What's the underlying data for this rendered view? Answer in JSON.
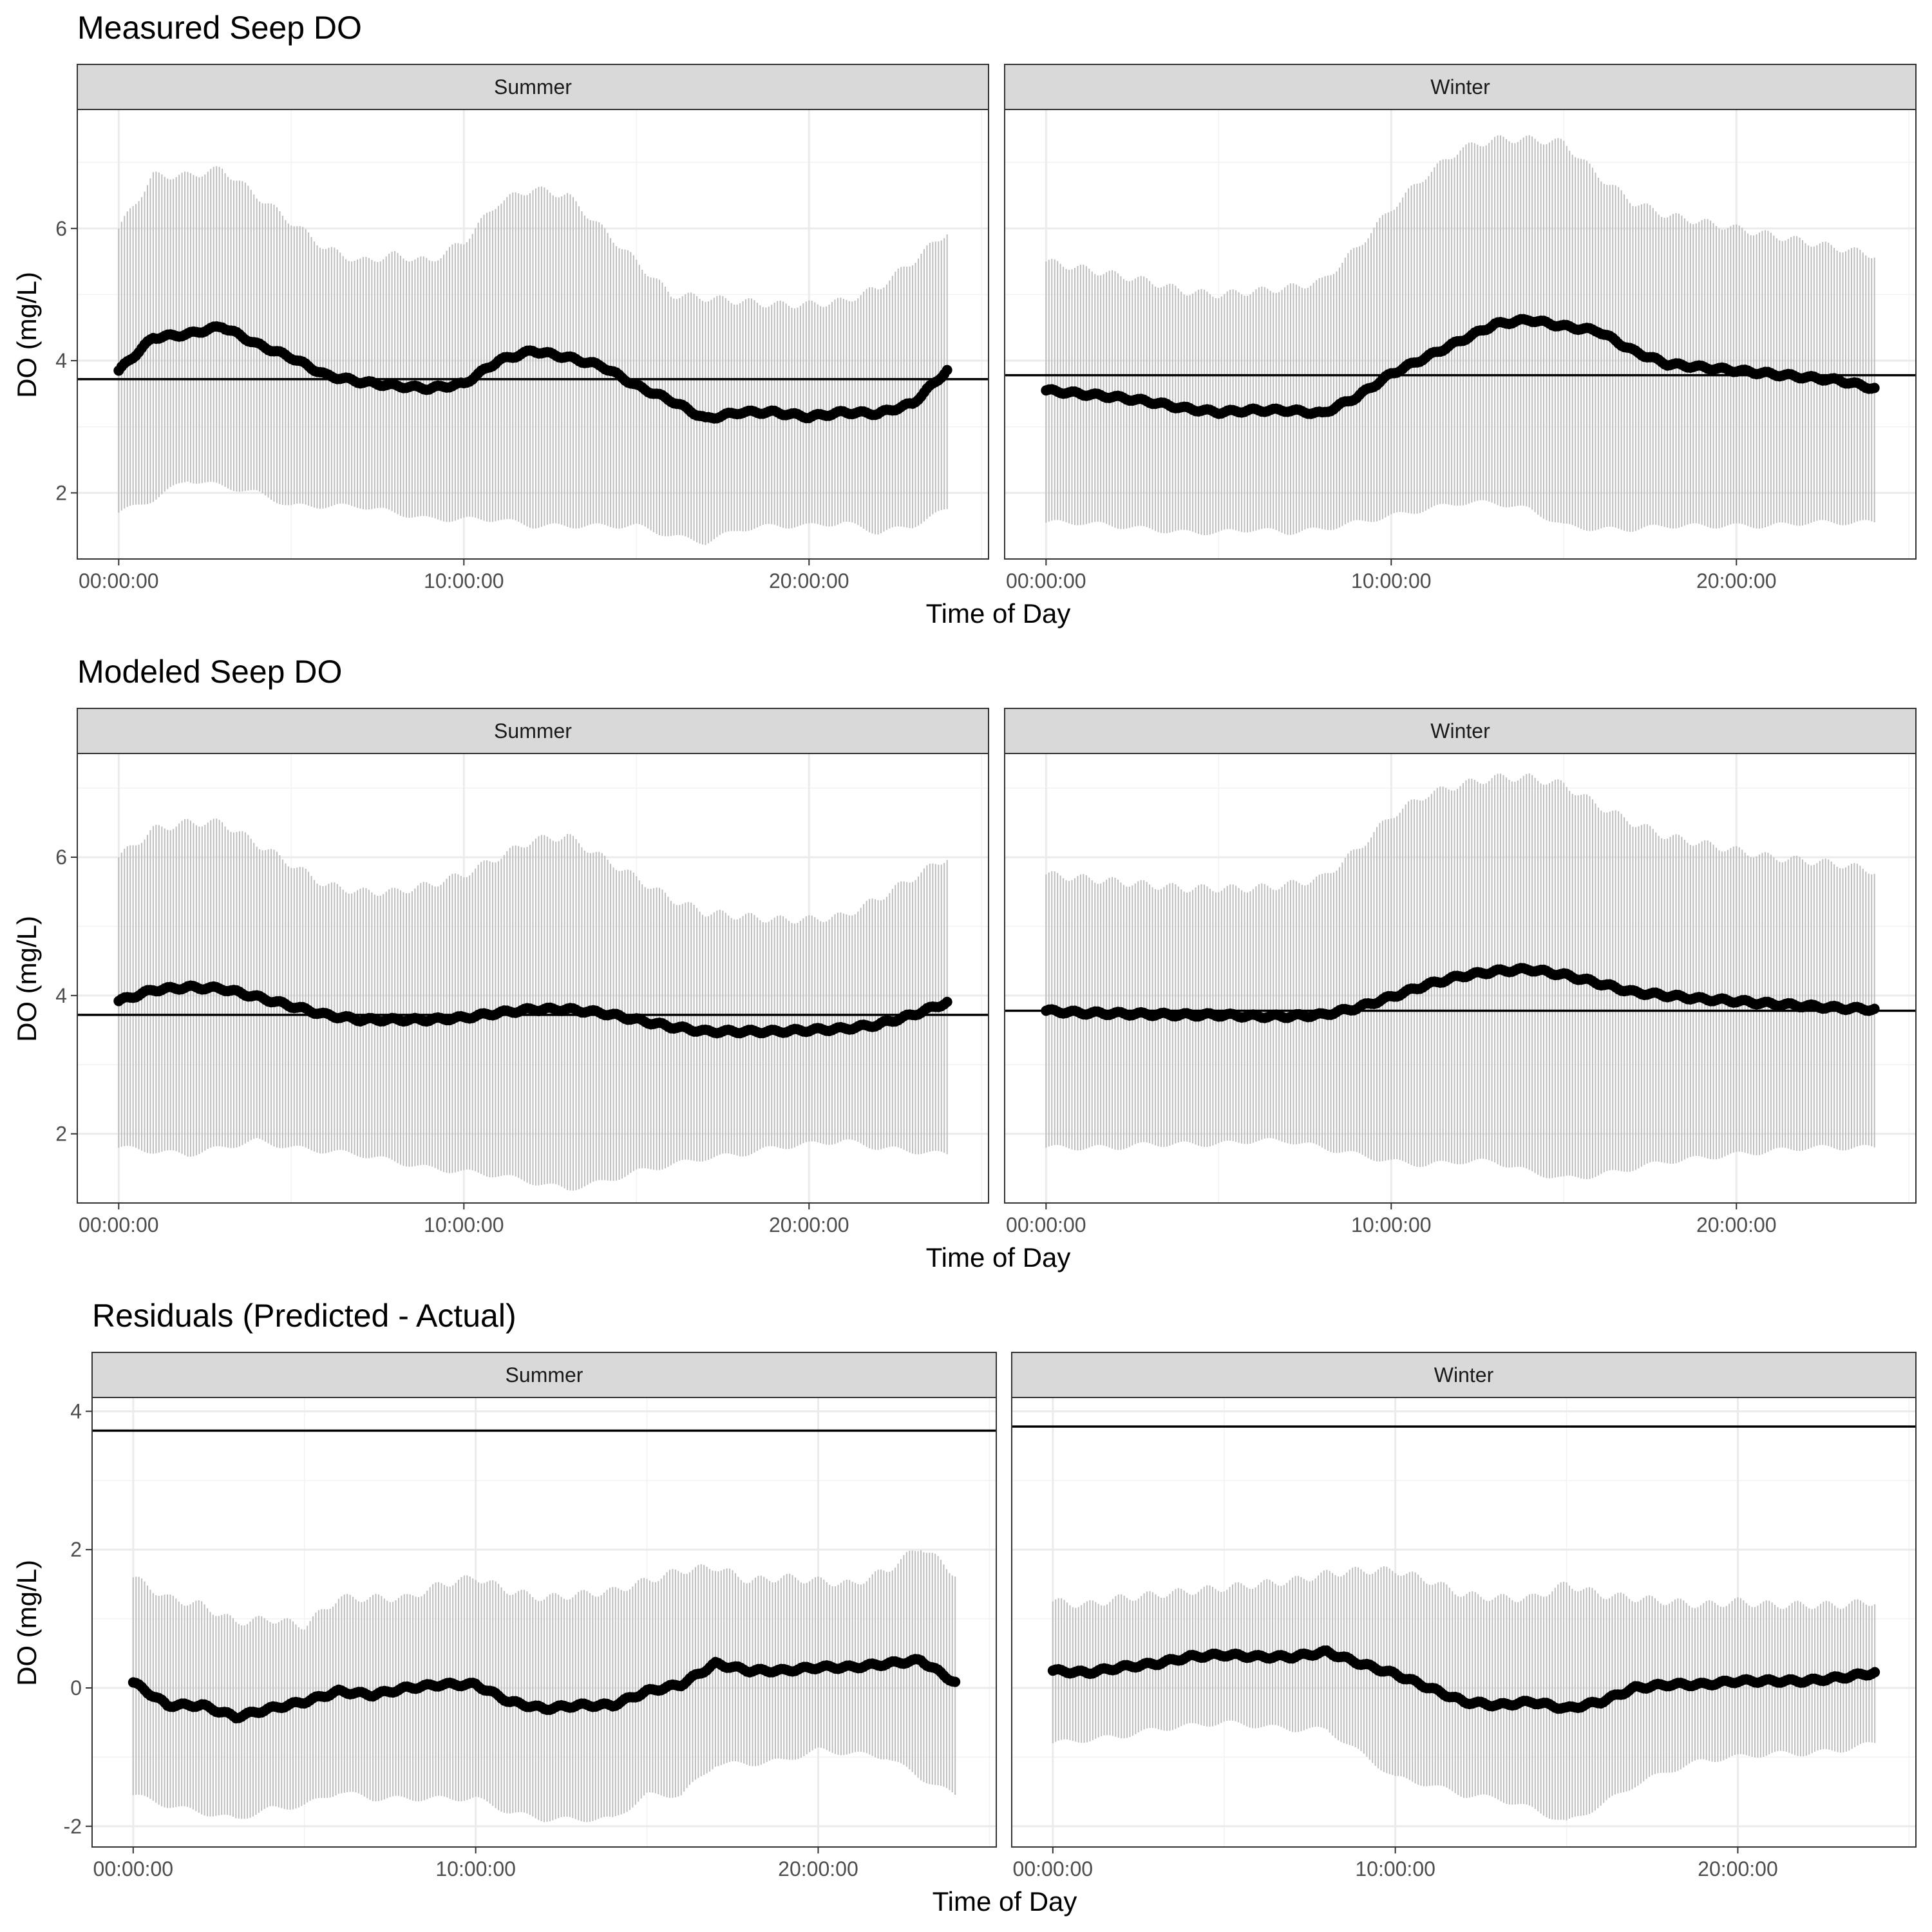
{
  "figure": {
    "panels": [
      {
        "title": "Measured Seep DO",
        "xlabel": "Time of Day",
        "ylabel": "DO (mg/L)"
      },
      {
        "title": "Modeled Seep DO",
        "xlabel": "Time of Day",
        "ylabel": "DO (mg/L)"
      },
      {
        "title": "Residuals (Predicted - Actual)",
        "xlabel": "Time of Day",
        "ylabel": "DO (mg/L)"
      }
    ]
  },
  "chart_data": [
    {
      "type": "scatter",
      "title": "Measured Seep DO",
      "xlabel": "Time of Day",
      "ylabel": "DO (mg/L)",
      "ylim": [
        1.0,
        7.8
      ],
      "yticks": [
        2,
        4,
        6
      ],
      "ytick_labels": [
        "2",
        "4",
        "6"
      ],
      "xlim_hours": [
        -1.2,
        25.2
      ],
      "xticks_hours": [
        0,
        10,
        20
      ],
      "xtick_labels": [
        "00:00:00",
        "10:00:00",
        "20:00:00"
      ],
      "grid": true,
      "facets": [
        {
          "label": "Summer",
          "hline": 3.72,
          "hours": [
            0,
            1,
            2,
            3,
            4,
            5,
            6,
            7,
            8,
            9,
            10,
            11,
            12,
            13,
            14,
            15,
            16,
            17,
            18,
            19,
            20,
            21,
            22,
            23,
            24
          ],
          "mean": [
            3.85,
            4.35,
            4.4,
            4.52,
            4.25,
            4.05,
            3.78,
            3.68,
            3.62,
            3.58,
            3.65,
            4.0,
            4.15,
            4.05,
            3.92,
            3.62,
            3.4,
            3.12,
            3.22,
            3.22,
            3.15,
            3.22,
            3.2,
            3.35,
            3.85
          ],
          "upper": [
            6.0,
            6.8,
            6.8,
            6.9,
            6.5,
            6.1,
            5.7,
            5.5,
            5.6,
            5.5,
            5.8,
            6.4,
            6.6,
            6.5,
            6.0,
            5.5,
            5.0,
            4.95,
            4.9,
            4.85,
            4.85,
            4.9,
            5.1,
            5.5,
            5.95
          ],
          "lower": [
            1.7,
            1.9,
            2.2,
            2.1,
            2.0,
            1.8,
            1.8,
            1.8,
            1.7,
            1.6,
            1.6,
            1.6,
            1.5,
            1.5,
            1.5,
            1.5,
            1.35,
            1.25,
            1.45,
            1.5,
            1.5,
            1.55,
            1.4,
            1.5,
            1.75
          ]
        },
        {
          "label": "Winter",
          "hline": 3.78,
          "hours": [
            0,
            1,
            2,
            3,
            4,
            5,
            6,
            7,
            8,
            9,
            10,
            11,
            12,
            13,
            14,
            15,
            16,
            17,
            18,
            19,
            20,
            21,
            22,
            23,
            24
          ],
          "mean": [
            3.55,
            3.5,
            3.45,
            3.38,
            3.28,
            3.22,
            3.25,
            3.25,
            3.2,
            3.45,
            3.8,
            4.05,
            4.3,
            4.55,
            4.62,
            4.52,
            4.45,
            4.15,
            3.95,
            3.9,
            3.85,
            3.8,
            3.75,
            3.7,
            3.58
          ],
          "upper": [
            5.5,
            5.4,
            5.3,
            5.2,
            5.05,
            5.0,
            5.05,
            5.1,
            5.2,
            5.7,
            6.3,
            6.8,
            7.2,
            7.35,
            7.35,
            7.3,
            6.8,
            6.4,
            6.2,
            6.1,
            6.0,
            5.9,
            5.8,
            5.7,
            5.6
          ],
          "lower": [
            1.55,
            1.55,
            1.5,
            1.45,
            1.4,
            1.4,
            1.45,
            1.4,
            1.45,
            1.55,
            1.65,
            1.75,
            1.85,
            1.85,
            1.75,
            1.5,
            1.45,
            1.45,
            1.5,
            1.5,
            1.5,
            1.5,
            1.55,
            1.55,
            1.55
          ]
        }
      ]
    },
    {
      "type": "scatter",
      "title": "Modeled Seep DO",
      "xlabel": "Time of Day",
      "ylabel": "DO (mg/L)",
      "ylim": [
        1.0,
        7.5
      ],
      "yticks": [
        2,
        4,
        6
      ],
      "ytick_labels": [
        "2",
        "4",
        "6"
      ],
      "xlim_hours": [
        -1.2,
        25.2
      ],
      "xticks_hours": [
        0,
        10,
        20
      ],
      "xtick_labels": [
        "00:00:00",
        "10:00:00",
        "20:00:00"
      ],
      "grid": true,
      "facets": [
        {
          "label": "Summer",
          "hline": 3.72,
          "hours": [
            0,
            1,
            2,
            3,
            4,
            5,
            6,
            7,
            8,
            9,
            10,
            11,
            12,
            13,
            14,
            15,
            16,
            17,
            18,
            19,
            20,
            21,
            22,
            23,
            24
          ],
          "mean": [
            3.92,
            4.08,
            4.12,
            4.1,
            3.98,
            3.85,
            3.72,
            3.65,
            3.65,
            3.65,
            3.68,
            3.75,
            3.8,
            3.8,
            3.75,
            3.65,
            3.55,
            3.48,
            3.48,
            3.48,
            3.5,
            3.52,
            3.58,
            3.72,
            3.9
          ],
          "upper": [
            6.0,
            6.4,
            6.5,
            6.5,
            6.2,
            5.9,
            5.6,
            5.5,
            5.5,
            5.6,
            5.75,
            6.0,
            6.25,
            6.3,
            6.0,
            5.7,
            5.4,
            5.2,
            5.15,
            5.1,
            5.1,
            5.15,
            5.4,
            5.7,
            6.0
          ],
          "lower": [
            1.8,
            1.75,
            1.7,
            1.8,
            1.9,
            1.8,
            1.75,
            1.7,
            1.6,
            1.5,
            1.45,
            1.4,
            1.3,
            1.2,
            1.3,
            1.45,
            1.55,
            1.65,
            1.7,
            1.8,
            1.85,
            1.9,
            1.8,
            1.75,
            1.7
          ]
        },
        {
          "label": "Winter",
          "hline": 3.78,
          "hours": [
            0,
            1,
            2,
            3,
            4,
            5,
            6,
            7,
            8,
            9,
            10,
            11,
            12,
            13,
            14,
            15,
            16,
            17,
            18,
            19,
            20,
            21,
            22,
            23,
            24
          ],
          "mean": [
            3.78,
            3.75,
            3.74,
            3.73,
            3.72,
            3.72,
            3.7,
            3.7,
            3.72,
            3.82,
            3.98,
            4.15,
            4.28,
            4.35,
            4.38,
            4.3,
            4.18,
            4.05,
            4.0,
            3.95,
            3.92,
            3.88,
            3.85,
            3.82,
            3.8
          ],
          "upper": [
            5.75,
            5.7,
            5.65,
            5.6,
            5.55,
            5.55,
            5.55,
            5.6,
            5.7,
            6.1,
            6.6,
            6.9,
            7.05,
            7.15,
            7.15,
            7.05,
            6.75,
            6.5,
            6.3,
            6.2,
            6.1,
            6.0,
            5.95,
            5.9,
            5.8
          ],
          "lower": [
            1.8,
            1.8,
            1.8,
            1.85,
            1.85,
            1.85,
            1.9,
            1.9,
            1.8,
            1.7,
            1.6,
            1.55,
            1.6,
            1.6,
            1.45,
            1.35,
            1.4,
            1.5,
            1.6,
            1.65,
            1.7,
            1.75,
            1.8,
            1.8,
            1.8
          ]
        }
      ]
    },
    {
      "type": "scatter",
      "title": "Residuals (Predicted - Actual)",
      "xlabel": "Time of Day",
      "ylabel": "DO (mg/L)",
      "ylim": [
        -2.3,
        4.2
      ],
      "yticks": [
        -2,
        0,
        2,
        4
      ],
      "ytick_labels": [
        "-2",
        "0",
        "2",
        "4"
      ],
      "xlim_hours": [
        -1.2,
        25.2
      ],
      "xticks_hours": [
        0,
        10,
        20
      ],
      "xtick_labels": [
        "00:00:00",
        "10:00:00",
        "20:00:00"
      ],
      "grid": true,
      "facets": [
        {
          "label": "Summer",
          "hline": 3.72,
          "hours": [
            0,
            1,
            2,
            3,
            4,
            5,
            6,
            7,
            8,
            9,
            10,
            11,
            12,
            13,
            14,
            15,
            16,
            17,
            18,
            19,
            20,
            21,
            22,
            23,
            24
          ],
          "mean": [
            0.08,
            -0.25,
            -0.25,
            -0.42,
            -0.3,
            -0.2,
            -0.05,
            -0.1,
            0.0,
            0.05,
            0.05,
            -0.2,
            -0.3,
            -0.25,
            -0.25,
            -0.05,
            0.05,
            0.35,
            0.25,
            0.25,
            0.3,
            0.3,
            0.35,
            0.4,
            0.08
          ],
          "upper": [
            1.6,
            1.3,
            1.2,
            0.95,
            1.0,
            0.9,
            1.3,
            1.3,
            1.3,
            1.5,
            1.6,
            1.4,
            1.3,
            1.35,
            1.4,
            1.55,
            1.7,
            1.75,
            1.55,
            1.6,
            1.55,
            1.5,
            1.7,
            2.05,
            1.65
          ],
          "lower": [
            -1.55,
            -1.7,
            -1.8,
            -1.9,
            -1.75,
            -1.7,
            -1.5,
            -1.6,
            -1.6,
            -1.6,
            -1.6,
            -1.8,
            -1.9,
            -1.9,
            -1.9,
            -1.55,
            -1.55,
            -1.1,
            -1.1,
            -1.05,
            -0.9,
            -0.95,
            -1.0,
            -1.3,
            -1.55
          ]
        },
        {
          "label": "Winter",
          "hline": 3.78,
          "hours": [
            0,
            1,
            2,
            3,
            4,
            5,
            6,
            7,
            8,
            9,
            10,
            11,
            12,
            13,
            14,
            15,
            16,
            17,
            18,
            19,
            20,
            21,
            22,
            23,
            24
          ],
          "mean": [
            0.25,
            0.22,
            0.3,
            0.35,
            0.45,
            0.48,
            0.45,
            0.45,
            0.52,
            0.35,
            0.2,
            0.0,
            -0.2,
            -0.25,
            -0.2,
            -0.3,
            -0.2,
            0.0,
            0.05,
            0.05,
            0.1,
            0.1,
            0.1,
            0.15,
            0.22
          ],
          "upper": [
            1.25,
            1.2,
            1.3,
            1.35,
            1.4,
            1.45,
            1.5,
            1.55,
            1.65,
            1.7,
            1.7,
            1.55,
            1.35,
            1.3,
            1.3,
            1.5,
            1.35,
            1.3,
            1.25,
            1.2,
            1.25,
            1.2,
            1.2,
            1.2,
            1.25
          ],
          "lower": [
            -0.8,
            -0.75,
            -0.7,
            -0.6,
            -0.55,
            -0.5,
            -0.55,
            -0.6,
            -0.6,
            -0.95,
            -1.3,
            -1.4,
            -1.55,
            -1.6,
            -1.75,
            -1.95,
            -1.7,
            -1.4,
            -1.2,
            -1.05,
            -1.0,
            -0.95,
            -0.95,
            -0.9,
            -0.8
          ]
        }
      ]
    }
  ]
}
